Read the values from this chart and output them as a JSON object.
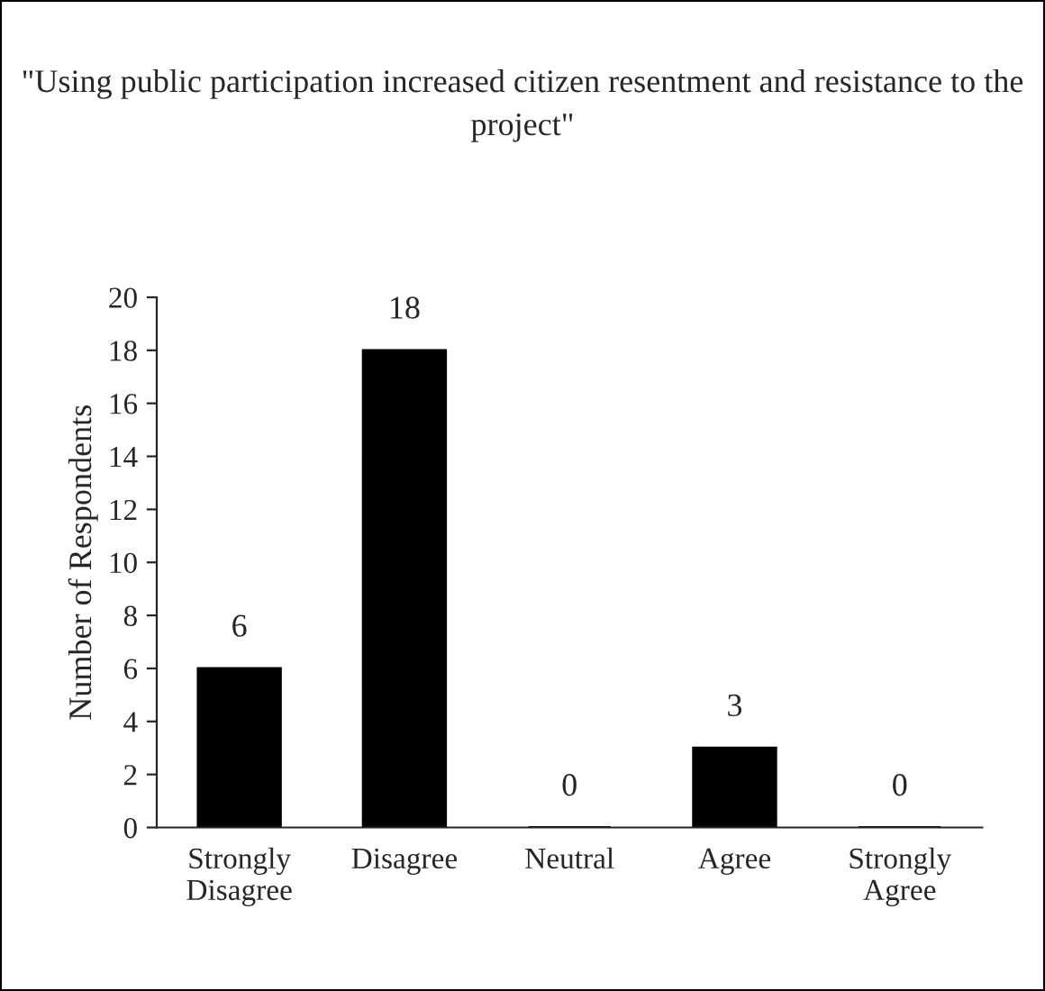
{
  "chart_data": {
    "type": "bar",
    "title": "\"Using public participation increased citizen resentment and resistance to the project\"",
    "ylabel": "Number of Respondents",
    "categories": [
      "Strongly Disagree",
      "Disagree",
      "Neutral",
      "Agree",
      "Strongly Agree"
    ],
    "values": [
      6,
      18,
      0,
      3,
      0
    ],
    "color": "#000000",
    "ylim": [
      0,
      20
    ],
    "yticks": [
      0,
      2,
      4,
      6,
      8,
      10,
      12,
      14,
      16,
      18,
      20
    ],
    "data_labels": true,
    "grid": false
  }
}
